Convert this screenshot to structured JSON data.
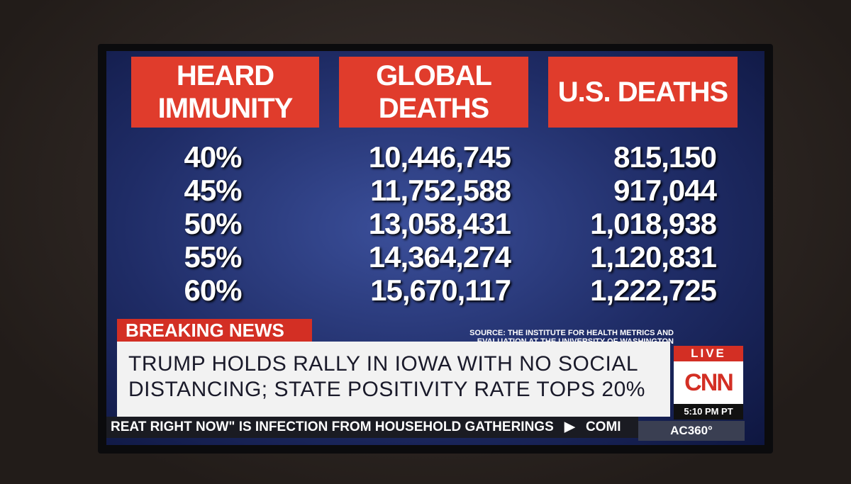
{
  "table": {
    "columns": [
      "HEARD IMMUNITY",
      "GLOBAL DEATHS",
      "U.S. DEATHS"
    ],
    "rows": [
      [
        "40%",
        "10,446,745",
        "815,150"
      ],
      [
        "45%",
        "11,752,588",
        "917,044"
      ],
      [
        "50%",
        "13,058,431",
        "1,018,938"
      ],
      [
        "55%",
        "14,364,274",
        "1,120,831"
      ],
      [
        "60%",
        "15,670,117",
        "1,222,725"
      ]
    ]
  },
  "source": "SOURCE: THE INSTITUTE FOR HEALTH METRICS AND EVALUATION AT THE UNIVERSITY OF WASHINGTON",
  "banner": {
    "label": "BREAKING NEWS",
    "headline": "TRUMP HOLDS RALLY IN IOWA WITH NO SOCIAL DISTANCING; STATE POSITIVITY RATE TOPS 20%"
  },
  "live": "LIVE",
  "network": "CNN",
  "time": "5:10 PM PT",
  "ticker": {
    "text": "REAT RIGHT NOW\" IS INFECTION FROM HOUSEHOLD GATHERINGS",
    "next": "COMI"
  },
  "show": "AC360°"
}
